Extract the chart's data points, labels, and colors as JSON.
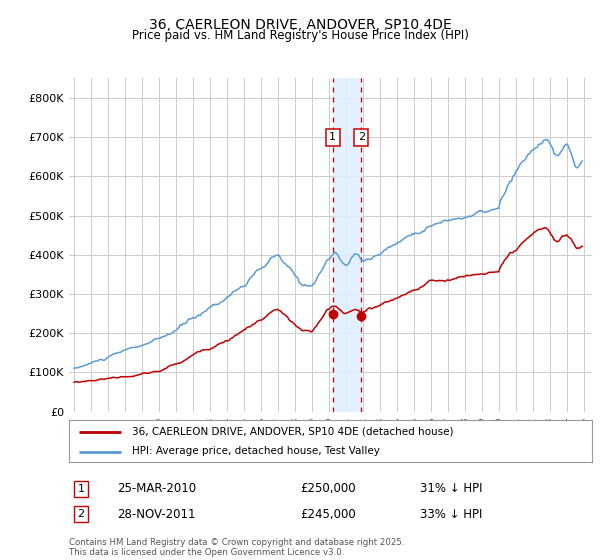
{
  "title_line1": "36, CAERLEON DRIVE, ANDOVER, SP10 4DE",
  "title_line2": "Price paid vs. HM Land Registry's House Price Index (HPI)",
  "hpi_color": "#5b9bd5",
  "price_color": "#c00000",
  "xlim_start": 1994.7,
  "xlim_end": 2025.5,
  "ylim_bottom": 0,
  "ylim_top": 850000,
  "yticks": [
    0,
    100000,
    200000,
    300000,
    400000,
    500000,
    600000,
    700000,
    800000
  ],
  "ytick_labels": [
    "£0",
    "£100K",
    "£200K",
    "£300K",
    "£400K",
    "£500K",
    "£600K",
    "£700K",
    "£800K"
  ],
  "xticks": [
    1995,
    1996,
    1997,
    1998,
    1999,
    2000,
    2001,
    2002,
    2003,
    2004,
    2005,
    2006,
    2007,
    2008,
    2009,
    2010,
    2011,
    2012,
    2013,
    2014,
    2015,
    2016,
    2017,
    2018,
    2019,
    2020,
    2021,
    2022,
    2023,
    2024,
    2025
  ],
  "sale1_date_num": 2010.23,
  "sale1_price": 250000,
  "sale2_date_num": 2011.91,
  "sale2_price": 245000,
  "sale1_label": "25-MAR-2010",
  "sale1_amount": "£250,000",
  "sale1_hpi": "31% ↓ HPI",
  "sale2_label": "28-NOV-2011",
  "sale2_amount": "£245,000",
  "sale2_hpi": "33% ↓ HPI",
  "legend_line1": "36, CAERLEON DRIVE, ANDOVER, SP10 4DE (detached house)",
  "legend_line2": "HPI: Average price, detached house, Test Valley",
  "footer": "Contains HM Land Registry data © Crown copyright and database right 2025.\nThis data is licensed under the Open Government Licence v3.0.",
  "background_color": "#ffffff",
  "grid_color": "#cccccc",
  "shade_color": "#ddeeff",
  "vline_color": "#cc0000"
}
